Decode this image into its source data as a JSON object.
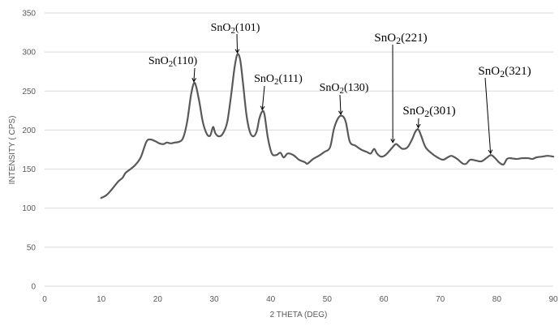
{
  "chart_data": {
    "type": "line",
    "title": "",
    "xlabel": "2 THETA (DEG)",
    "ylabel": "INTENSITY ( CPS)",
    "xlim": [
      0,
      90
    ],
    "ylim": [
      0,
      350
    ],
    "x_ticks": [
      "0",
      "10",
      "20",
      "30",
      "40",
      "50",
      "60",
      "70",
      "80",
      "90"
    ],
    "y_ticks": [
      "0",
      "50",
      "100",
      "150",
      "200",
      "250",
      "300",
      "350"
    ],
    "grid": "horizontal",
    "line_color": "#595959",
    "series": [
      {
        "points": [
          [
            10,
            113
          ],
          [
            11,
            117
          ],
          [
            12,
            125
          ],
          [
            13,
            134
          ],
          [
            13.8,
            139
          ],
          [
            14.3,
            145
          ],
          [
            15,
            149
          ],
          [
            16,
            155
          ],
          [
            17,
            165
          ],
          [
            18,
            185
          ],
          [
            18.7,
            188
          ],
          [
            19.5,
            186
          ],
          [
            20.3,
            183
          ],
          [
            21,
            182
          ],
          [
            21.6,
            184
          ],
          [
            22.3,
            183
          ],
          [
            23,
            184
          ],
          [
            23.8,
            185
          ],
          [
            24.5,
            190
          ],
          [
            25.2,
            210
          ],
          [
            25.9,
            245
          ],
          [
            26.4,
            260
          ],
          [
            26.8,
            256
          ],
          [
            27.4,
            235
          ],
          [
            28,
            210
          ],
          [
            28.7,
            195
          ],
          [
            29.3,
            193
          ],
          [
            29.8,
            204
          ],
          [
            30.2,
            196
          ],
          [
            30.8,
            192
          ],
          [
            31.5,
            195
          ],
          [
            32.3,
            210
          ],
          [
            33,
            245
          ],
          [
            33.6,
            280
          ],
          [
            34.1,
            297
          ],
          [
            34.6,
            290
          ],
          [
            35.1,
            260
          ],
          [
            35.7,
            220
          ],
          [
            36.3,
            198
          ],
          [
            36.9,
            192
          ],
          [
            37.5,
            198
          ],
          [
            38,
            215
          ],
          [
            38.5,
            224
          ],
          [
            38.9,
            220
          ],
          [
            39.5,
            190
          ],
          [
            40.2,
            170
          ],
          [
            41,
            168
          ],
          [
            41.7,
            171
          ],
          [
            42.3,
            165
          ],
          [
            43,
            170
          ],
          [
            44,
            168
          ],
          [
            45,
            162
          ],
          [
            46,
            159
          ],
          [
            46.5,
            157
          ],
          [
            47.5,
            163
          ],
          [
            48.5,
            167
          ],
          [
            49.5,
            172
          ],
          [
            50.5,
            178
          ],
          [
            51.2,
            202
          ],
          [
            52,
            216
          ],
          [
            52.7,
            218
          ],
          [
            53.3,
            210
          ],
          [
            54,
            185
          ],
          [
            55,
            180
          ],
          [
            56,
            175
          ],
          [
            57,
            172
          ],
          [
            57.7,
            170
          ],
          [
            58.3,
            176
          ],
          [
            58.8,
            170
          ],
          [
            59.5,
            166
          ],
          [
            60.3,
            168
          ],
          [
            61.2,
            175
          ],
          [
            62.1,
            182
          ],
          [
            62.6,
            180
          ],
          [
            63.3,
            176
          ],
          [
            64.2,
            178
          ],
          [
            65,
            188
          ],
          [
            65.6,
            198
          ],
          [
            66.1,
            201
          ],
          [
            66.6,
            193
          ],
          [
            67.4,
            178
          ],
          [
            68.5,
            170
          ],
          [
            69.5,
            165
          ],
          [
            70.5,
            162
          ],
          [
            71.3,
            165
          ],
          [
            72,
            167
          ],
          [
            73,
            163
          ],
          [
            74,
            157
          ],
          [
            74.6,
            157
          ],
          [
            75.3,
            162
          ],
          [
            76.3,
            161
          ],
          [
            77.3,
            160
          ],
          [
            78.3,
            165
          ],
          [
            79,
            168
          ],
          [
            79.7,
            164
          ],
          [
            80.5,
            158
          ],
          [
            81.2,
            156
          ],
          [
            81.8,
            163
          ],
          [
            82.4,
            164
          ],
          [
            83.5,
            163
          ],
          [
            84.5,
            164
          ],
          [
            85.5,
            164
          ],
          [
            86.3,
            163
          ],
          [
            87,
            165
          ],
          [
            88,
            166
          ],
          [
            89,
            167
          ],
          [
            90,
            166
          ]
        ]
      }
    ],
    "annotations": [
      {
        "formula": "SnO",
        "sub": "2",
        "hkl": "(110)",
        "target": [
          26.4,
          260
        ]
      },
      {
        "formula": "SnO",
        "sub": "2",
        "hkl": "(101)",
        "target": [
          34.1,
          297
        ]
      },
      {
        "formula": "SnO",
        "sub": "2",
        "hkl": "(111)",
        "target": [
          38.5,
          224
        ]
      },
      {
        "formula": "SnO",
        "sub": "2",
        "hkl": "(130)",
        "target": [
          52.4,
          218
        ]
      },
      {
        "formula": "SnO",
        "sub": "2",
        "hkl": "(221)",
        "target": [
          61.6,
          182
        ]
      },
      {
        "formula": "SnO",
        "sub": "2",
        "hkl": "(301)",
        "target": [
          66.1,
          201
        ]
      },
      {
        "formula": "SnO",
        "sub": "2",
        "hkl": "(321)",
        "target": [
          78.9,
          168
        ]
      }
    ]
  }
}
